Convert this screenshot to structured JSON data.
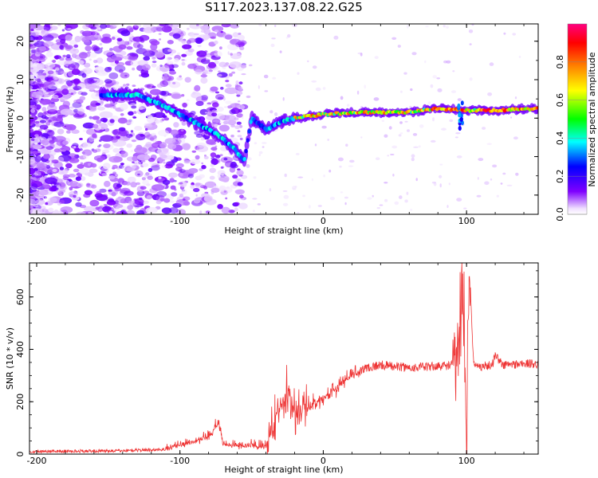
{
  "title": "S117.2023.137.08.22.G25",
  "chart_data": [
    {
      "type": "heatmap",
      "xlabel": "Height of straight line (km)",
      "ylabel": "Frequency (Hz)",
      "xlim": [
        -205,
        150
      ],
      "ylim": [
        -25,
        24.5
      ],
      "xticks": [
        -200,
        -100,
        0,
        100
      ],
      "yticks": [
        -20,
        -10,
        0,
        10,
        20
      ],
      "colorbar": {
        "label": "Normalized spectral amplitude",
        "range": [
          0,
          1
        ],
        "ticks": [
          "0.0",
          "0.2",
          "0.4",
          "0.6",
          "0.8"
        ],
        "colors": [
          "#ffffff",
          "#7f00ff",
          "#0000ff",
          "#00ffff",
          "#00ff00",
          "#ffff00",
          "#ff8000",
          "#ff0000",
          "#ff0080"
        ]
      },
      "ridge": [
        {
          "x": -150,
          "y": 6
        },
        {
          "x": -130,
          "y": 6
        },
        {
          "x": -110,
          "y": 3
        },
        {
          "x": -90,
          "y": -1
        },
        {
          "x": -75,
          "y": -4
        },
        {
          "x": -62,
          "y": -8
        },
        {
          "x": -55,
          "y": -11
        },
        {
          "x": -50,
          "y": 0
        },
        {
          "x": -40,
          "y": -3
        },
        {
          "x": -30,
          "y": -1
        },
        {
          "x": -20,
          "y": 0
        },
        {
          "x": 0,
          "y": 1
        },
        {
          "x": 25,
          "y": 1.5
        },
        {
          "x": 55,
          "y": 1.5
        },
        {
          "x": 80,
          "y": 2.5
        },
        {
          "x": 100,
          "y": 2
        },
        {
          "x": 120,
          "y": 2
        },
        {
          "x": 150,
          "y": 2.5
        }
      ]
    },
    {
      "type": "line",
      "xlabel": "Height of straight line (km)",
      "ylabel": "SNR (10 * v/v)",
      "xlim": [
        -205,
        150
      ],
      "ylim": [
        0,
        730
      ],
      "xticks": [
        -200,
        -100,
        0,
        100
      ],
      "yticks": [
        0,
        200,
        400,
        600
      ],
      "color": "#ee3333",
      "series": [
        {
          "x": [
            -205,
            -150,
            -110,
            -95,
            -80,
            -73,
            -70,
            -60,
            -40,
            -35,
            -25,
            -20,
            -10,
            0,
            10,
            20,
            30,
            40,
            60,
            80,
            90,
            95,
            98,
            100,
            102,
            105,
            110,
            118,
            120,
            125,
            140,
            150
          ],
          "y": [
            10,
            12,
            18,
            40,
            60,
            120,
            35,
            30,
            25,
            120,
            250,
            160,
            190,
            210,
            260,
            300,
            330,
            340,
            330,
            335,
            340,
            450,
            600,
            120,
            700,
            340,
            335,
            340,
            380,
            340,
            345,
            345
          ]
        }
      ]
    }
  ]
}
